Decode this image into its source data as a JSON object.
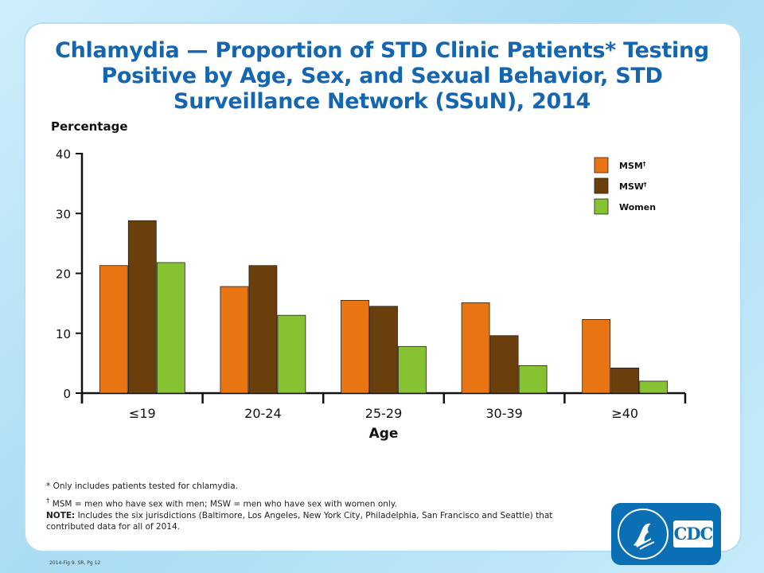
{
  "title": "Chlamydia — Proportion of STD Clinic Patients* Testing Positive by Age, Sex, and Sexual Behavior, STD Surveillance Network (SSuN), 2014",
  "footnotes": {
    "note1": "* Only includes patients tested for chlamydia.",
    "note2_mark": "†",
    "note2": " MSM = men who have sex with men; MSW = men who have sex with women only.",
    "note3_label": "NOTE:",
    "note3": " Includes the six jurisdictions (Baltimore, Los Angeles, New York City, Philadelphia, San Francisco and Seattle) that contributed data for all of 2014."
  },
  "fig_ref": "2014-Fig 9. SR, Pg 12",
  "logo": {
    "text": "CDC",
    "bg": "#0a6fb4"
  },
  "colors": {
    "title": "#1466b0",
    "msm": "#e87511",
    "msw": "#6b3f0b",
    "women": "#86c232"
  },
  "chart_data": {
    "type": "bar",
    "ylabel": "Percentage",
    "xlabel": "Age",
    "ylim": [
      0,
      40
    ],
    "yticks": [
      "0",
      "10",
      "20",
      "30",
      "40"
    ],
    "categories": [
      "≤19",
      "20-24",
      "25-29",
      "30-39",
      "≥40"
    ],
    "grid": false,
    "legend_position": "top-right",
    "series": [
      {
        "name": "MSM",
        "mark": "†",
        "color": "#e87511",
        "values": [
          21.3,
          17.8,
          15.5,
          15.1,
          12.3
        ]
      },
      {
        "name": "MSW",
        "mark": "†",
        "color": "#6b3f0b",
        "values": [
          28.8,
          21.3,
          14.5,
          9.6,
          4.2
        ]
      },
      {
        "name": "Women",
        "mark": "",
        "color": "#86c232",
        "values": [
          21.8,
          13.0,
          7.8,
          4.6,
          2.0
        ]
      }
    ]
  }
}
